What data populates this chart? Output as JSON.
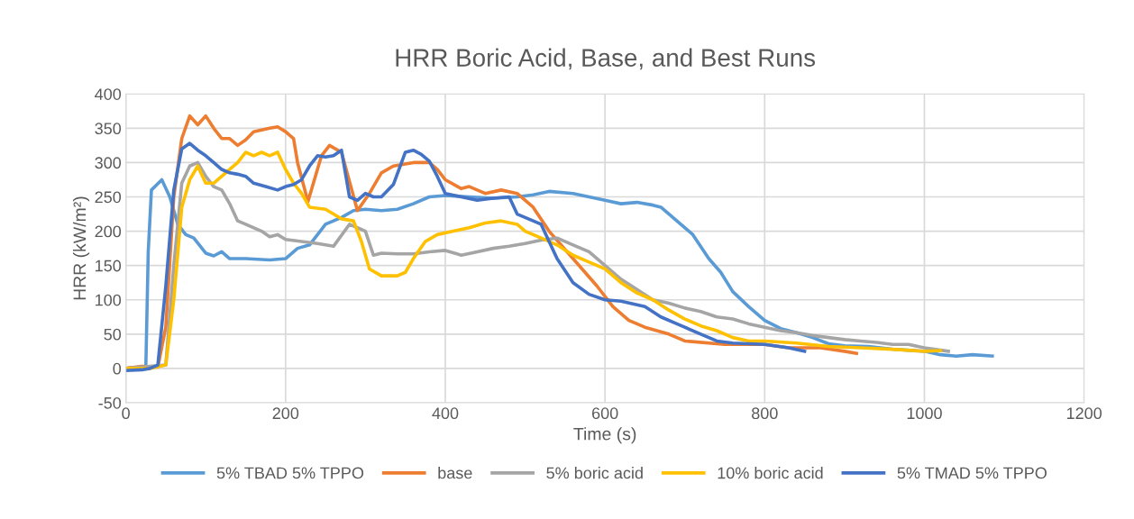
{
  "chart_data": {
    "type": "line",
    "title": "HRR Boric Acid, Base, and Best Runs",
    "xlabel": "Time (s)",
    "ylabel": "HRR (kW/m²)",
    "xlim": [
      0,
      1200
    ],
    "ylim": [
      -50,
      400
    ],
    "xticks": [
      0,
      200,
      400,
      600,
      800,
      1000,
      1200
    ],
    "yticks": [
      -50,
      0,
      50,
      100,
      150,
      200,
      250,
      300,
      350,
      400
    ],
    "grid": true,
    "legend": "bottom",
    "marker": "none",
    "line_style": "solid",
    "series": [
      {
        "name": "5% TBAD 5% TPPO",
        "color": "#5b9bd5",
        "x": [
          0,
          20,
          25,
          28,
          32,
          45,
          55,
          65,
          75,
          85,
          100,
          110,
          120,
          130,
          150,
          180,
          200,
          215,
          230,
          250,
          270,
          285,
          300,
          320,
          340,
          360,
          380,
          400,
          430,
          460,
          490,
          510,
          530,
          560,
          580,
          600,
          620,
          640,
          660,
          670,
          690,
          710,
          730,
          745,
          760,
          780,
          800,
          820,
          840,
          860,
          880,
          900,
          930,
          960,
          1000,
          1020,
          1040,
          1060,
          1085
        ],
        "values": [
          0,
          2,
          2,
          170,
          260,
          275,
          250,
          210,
          195,
          190,
          168,
          164,
          170,
          160,
          160,
          158,
          160,
          175,
          180,
          210,
          220,
          230,
          232,
          230,
          232,
          240,
          250,
          252,
          250,
          248,
          250,
          253,
          258,
          255,
          250,
          245,
          240,
          242,
          238,
          235,
          215,
          195,
          160,
          140,
          112,
          90,
          70,
          58,
          52,
          45,
          36,
          33,
          32,
          28,
          25,
          20,
          18,
          20,
          18
        ]
      },
      {
        "name": "base",
        "color": "#ed7d31",
        "x": [
          0,
          20,
          40,
          50,
          60,
          70,
          80,
          90,
          100,
          110,
          120,
          130,
          140,
          150,
          160,
          180,
          190,
          200,
          210,
          215,
          228,
          245,
          255,
          270,
          290,
          305,
          320,
          335,
          360,
          380,
          390,
          400,
          420,
          430,
          450,
          470,
          490,
          510,
          530,
          560,
          590,
          610,
          630,
          650,
          680,
          700,
          750,
          800,
          830,
          870,
          900,
          915
        ],
        "values": [
          0,
          3,
          2,
          60,
          250,
          335,
          368,
          355,
          368,
          350,
          335,
          335,
          325,
          333,
          345,
          350,
          352,
          345,
          335,
          300,
          243,
          310,
          325,
          315,
          230,
          255,
          285,
          295,
          300,
          300,
          290,
          275,
          262,
          265,
          255,
          260,
          255,
          235,
          200,
          160,
          120,
          90,
          70,
          60,
          50,
          40,
          35,
          35,
          30,
          30,
          25,
          22
        ]
      },
      {
        "name": "5% boric acid",
        "color": "#a5a5a5",
        "x": [
          0,
          50,
          60,
          70,
          80,
          90,
          100,
          110,
          120,
          130,
          140,
          150,
          170,
          180,
          190,
          200,
          220,
          240,
          260,
          280,
          290,
          300,
          310,
          320,
          340,
          360,
          380,
          400,
          420,
          440,
          460,
          480,
          500,
          520,
          540,
          560,
          580,
          600,
          620,
          640,
          660,
          680,
          700,
          720,
          740,
          760,
          780,
          800,
          820,
          840,
          860,
          880,
          900,
          920,
          940,
          960,
          980,
          1000,
          1030
        ],
        "values": [
          0,
          5,
          150,
          270,
          295,
          300,
          280,
          265,
          260,
          240,
          215,
          210,
          200,
          192,
          195,
          188,
          185,
          182,
          178,
          210,
          205,
          200,
          165,
          168,
          167,
          167,
          170,
          172,
          165,
          170,
          175,
          178,
          182,
          187,
          190,
          180,
          170,
          150,
          130,
          115,
          100,
          95,
          88,
          83,
          75,
          72,
          65,
          60,
          55,
          52,
          48,
          45,
          42,
          40,
          38,
          35,
          35,
          30,
          25
        ]
      },
      {
        "name": "10% boric acid",
        "color": "#ffc000",
        "x": [
          0,
          30,
          50,
          60,
          70,
          80,
          90,
          100,
          110,
          120,
          140,
          150,
          160,
          170,
          180,
          190,
          200,
          210,
          220,
          230,
          250,
          260,
          270,
          285,
          295,
          305,
          320,
          340,
          350,
          360,
          375,
          390,
          410,
          430,
          450,
          470,
          490,
          500,
          520,
          540,
          560,
          580,
          600,
          620,
          640,
          660,
          680,
          700,
          720,
          740,
          760,
          780,
          800,
          840,
          880,
          920,
          960,
          1000,
          1020
        ],
        "values": [
          0,
          0,
          5,
          100,
          235,
          275,
          295,
          270,
          270,
          280,
          300,
          315,
          310,
          315,
          310,
          315,
          290,
          270,
          255,
          235,
          232,
          225,
          218,
          215,
          185,
          145,
          135,
          135,
          140,
          160,
          185,
          195,
          200,
          205,
          212,
          215,
          210,
          200,
          190,
          180,
          165,
          155,
          145,
          125,
          110,
          100,
          85,
          72,
          62,
          55,
          45,
          40,
          40,
          37,
          32,
          30,
          28,
          25,
          26
        ]
      },
      {
        "name": "5% TMAD 5% TPPO",
        "color": "#4472c4",
        "x": [
          0,
          20,
          30,
          40,
          50,
          60,
          70,
          80,
          90,
          100,
          110,
          120,
          130,
          140,
          150,
          160,
          175,
          190,
          200,
          210,
          220,
          230,
          240,
          250,
          260,
          270,
          280,
          290,
          300,
          310,
          320,
          335,
          350,
          360,
          370,
          380,
          390,
          400,
          420,
          440,
          460,
          480,
          490,
          510,
          520,
          540,
          560,
          580,
          600,
          620,
          650,
          670,
          690,
          720,
          740,
          760,
          800,
          830,
          850
        ],
        "values": [
          -3,
          -2,
          0,
          5,
          120,
          260,
          320,
          328,
          318,
          310,
          300,
          290,
          285,
          283,
          280,
          270,
          265,
          260,
          265,
          268,
          275,
          295,
          310,
          308,
          310,
          318,
          250,
          245,
          255,
          250,
          250,
          268,
          315,
          318,
          312,
          302,
          280,
          255,
          250,
          245,
          248,
          250,
          225,
          215,
          210,
          160,
          125,
          108,
          100,
          98,
          90,
          75,
          65,
          50,
          40,
          37,
          35,
          30,
          25
        ]
      }
    ]
  }
}
